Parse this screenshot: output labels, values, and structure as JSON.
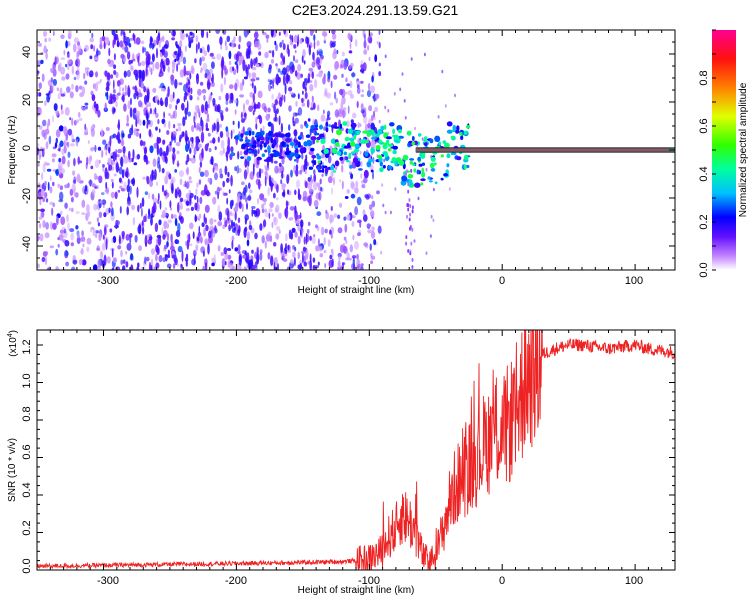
{
  "title": "C2E3.2024.291.13.59.G21",
  "top_panel": {
    "ylabel": "Frequency (Hz)",
    "xlabel": "Height of straight line (km)",
    "colorbar_label": "Normalized spectral amplitude",
    "x_ticks": [
      "-300",
      "-200",
      "-100",
      "0",
      "100"
    ],
    "y_ticks": [
      "40",
      "20",
      "0",
      "-20",
      "-40"
    ],
    "colorbar_ticks": [
      "0.0",
      "0.2",
      "0.4",
      "0.6",
      "0.8"
    ]
  },
  "bottom_panel": {
    "ylabel": "SNR (10 * v/v)",
    "xlabel": "Height of straight line (km)",
    "multiplier": "(x10",
    "multiplier_exp": "4",
    "multiplier_close": ")",
    "x_ticks": [
      "-300",
      "-200",
      "-100",
      "0",
      "100"
    ],
    "y_ticks": [
      "0.0",
      "0.2",
      "0.4",
      "0.6",
      "0.8",
      "1.0",
      "1.2"
    ]
  },
  "chart_data": [
    {
      "type": "heatmap",
      "title": "C2E3.2024.291.13.59.G21",
      "xlabel": "Height of straight line (km)",
      "ylabel": "Frequency (Hz)",
      "colorbar_label": "Normalized spectral amplitude",
      "xlim": [
        -350,
        130
      ],
      "ylim": [
        -50,
        50
      ],
      "clim": [
        0.0,
        1.0
      ],
      "colormap": [
        "#ffffff",
        "#a040ff",
        "#0000ff",
        "#00ffff",
        "#00ff00",
        "#ffff00",
        "#ff8000",
        "#ff0000",
        "#ff0080"
      ],
      "features": {
        "noise_region_x": [
          -350,
          -100
        ],
        "signal_line_x": [
          -65,
          130
        ],
        "signal_line_frequency": 0,
        "signal_line_amplitude": 0.9,
        "scattered_signal_x": [
          -205,
          -25
        ],
        "scattered_signal_frequency_range": [
          -12,
          8
        ]
      }
    },
    {
      "type": "line",
      "title": "",
      "xlabel": "Height of straight line (km)",
      "ylabel": "SNR (10 * v/v)",
      "xlim": [
        -350,
        130
      ],
      "ylim": [
        0,
        1.28
      ],
      "scale_note": "x10^4",
      "series": [
        {
          "color": "#ee2222",
          "x": [
            -350,
            -300,
            -250,
            -200,
            -150,
            -120,
            -110,
            -100,
            -95,
            -90,
            -85,
            -80,
            -75,
            -70,
            -65,
            -60,
            -55,
            -50,
            -45,
            -40,
            -35,
            -30,
            -25,
            -20,
            -15,
            -10,
            -5,
            0,
            5,
            10,
            15,
            20,
            25,
            30,
            40,
            50,
            60,
            70,
            80,
            90,
            100,
            110,
            120,
            130
          ],
          "values": [
            0.02,
            0.025,
            0.03,
            0.035,
            0.04,
            0.045,
            0.05,
            0.06,
            0.08,
            0.1,
            0.18,
            0.22,
            0.3,
            0.26,
            0.2,
            0.08,
            0.04,
            0.08,
            0.2,
            0.35,
            0.45,
            0.5,
            0.55,
            0.6,
            0.65,
            0.7,
            0.75,
            0.72,
            0.78,
            0.85,
            0.95,
            1.05,
            1.1,
            1.15,
            1.18,
            1.2,
            1.2,
            1.19,
            1.18,
            1.19,
            1.2,
            1.18,
            1.17,
            1.16
          ]
        }
      ]
    }
  ]
}
